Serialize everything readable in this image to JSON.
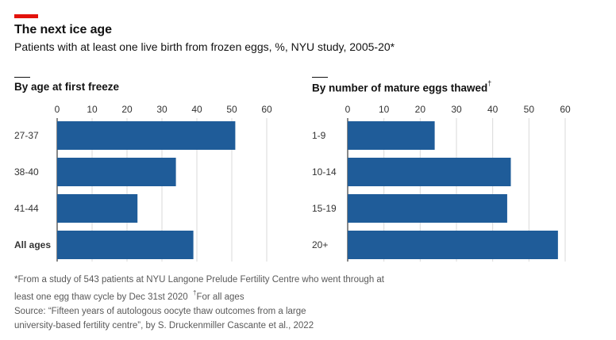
{
  "header": {
    "title": "The next ice age",
    "subtitle": "Patients with at least one live birth from frozen eggs, %, NYU study, 2005-20*"
  },
  "colors": {
    "accent": "#e3120b",
    "bar": "#1f5c99",
    "grid": "#d9d9d9",
    "text": "#333333"
  },
  "chart_data": [
    {
      "type": "bar",
      "orientation": "horizontal",
      "title": "By age at first freeze",
      "categories": [
        "27-37",
        "38-40",
        "41-44",
        "All ages"
      ],
      "values": [
        51,
        34,
        23,
        39
      ],
      "xlim": [
        0,
        60
      ],
      "xticks": [
        "0",
        "10",
        "20",
        "30",
        "40",
        "50",
        "60"
      ],
      "bold_categories": [
        "All ages"
      ],
      "grid": true
    },
    {
      "type": "bar",
      "orientation": "horizontal",
      "title": "By number of mature eggs thawed",
      "title_mark": "†",
      "categories": [
        "1-9",
        "10-14",
        "15-19",
        "20+"
      ],
      "values": [
        24,
        45,
        44,
        58
      ],
      "xlim": [
        0,
        60
      ],
      "xticks": [
        "0",
        "10",
        "20",
        "30",
        "40",
        "50",
        "60"
      ],
      "bold_categories": [],
      "grid": true
    }
  ],
  "footnotes": {
    "line1": "*From a study of 543 patients at NYU Langone Prelude Fertility Centre who went through at",
    "line2a": "least one egg thaw cycle by Dec 31st 2020",
    "line2_mark": "†",
    "line2b": "For all ages",
    "line3": "Source: “Fifteen years of autologous oocyte thaw outcomes from a large",
    "line4": "university-based fertility centre”, by S. Druckenmiller Cascante et al., 2022"
  }
}
